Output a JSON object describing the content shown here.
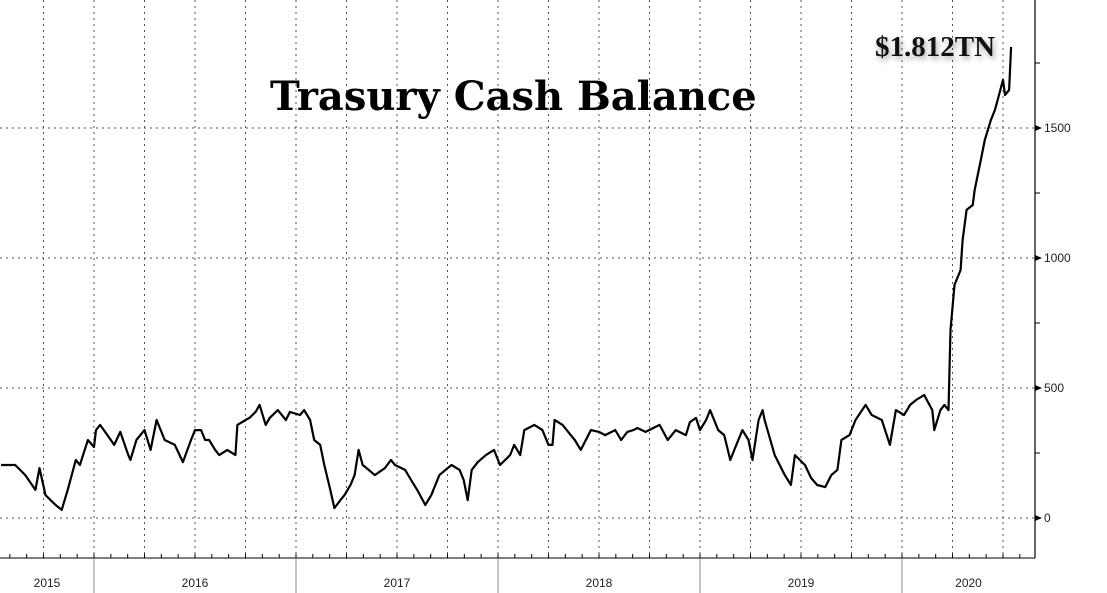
{
  "chart_data": {
    "type": "line",
    "title": "Trasury Cash Balance",
    "annotation": "$1.812TN",
    "xlabel": "",
    "ylabel": "",
    "x_tick_labels": [
      "2015",
      "2016",
      "2017",
      "2018",
      "2019",
      "2020"
    ],
    "y_ticks": [
      0,
      500,
      1000,
      1500
    ],
    "ylim": [
      -160,
      2000
    ],
    "xlim": [
      2015.535,
      2020.66
    ],
    "grid": true,
    "y_axis_side": "right",
    "line_color": "#000000",
    "series": [
      {
        "x": [
          2015.54,
          2015.61,
          2015.66,
          2015.71,
          2015.73,
          2015.76,
          2015.81,
          2015.84,
          2015.87,
          2015.91,
          2015.93,
          2015.97,
          2016.0,
          2016.01,
          2016.03,
          2016.07,
          2016.1,
          2016.13,
          2016.17,
          2016.18,
          2016.21,
          2016.25,
          2016.28,
          2016.31,
          2016.35,
          2016.4,
          2016.44,
          2016.48,
          2016.5,
          2016.53,
          2016.55,
          2016.57,
          2016.6,
          2016.62,
          2016.66,
          2016.7,
          2016.71,
          2016.75,
          2016.77,
          2016.8,
          2016.82,
          2016.85,
          2016.87,
          2016.91,
          2016.95,
          2016.97,
          2017.02,
          2017.04,
          2017.07,
          2017.09,
          2017.12,
          2017.14,
          2017.17,
          2017.19,
          2017.22,
          2017.24,
          2017.27,
          2017.29,
          2017.31,
          2017.33,
          2017.36,
          2017.39,
          2017.44,
          2017.47,
          2017.49,
          2017.54,
          2017.57,
          2017.6,
          2017.64,
          2017.67,
          2017.71,
          2017.74,
          2017.77,
          2017.81,
          2017.83,
          2017.85,
          2017.87,
          2017.9,
          2017.94,
          2017.98,
          2018.01,
          2018.06,
          2018.08,
          2018.11,
          2018.13,
          2018.18,
          2018.22,
          2018.25,
          2018.27,
          2018.28,
          2018.32,
          2018.36,
          2018.38,
          2018.41,
          2018.46,
          2018.5,
          2018.53,
          2018.58,
          2018.61,
          2018.64,
          2018.67,
          2018.69,
          2018.73,
          2018.8,
          2018.84,
          2018.88,
          2018.93,
          2018.95,
          2018.98,
          2019.0,
          2019.03,
          2019.05,
          2019.09,
          2019.12,
          2019.15,
          2019.17,
          2019.21,
          2019.24,
          2019.26,
          2019.29,
          2019.31,
          2019.32,
          2019.37,
          2019.42,
          2019.45,
          2019.47,
          2019.52,
          2019.55,
          2019.58,
          2019.62,
          2019.65,
          2019.68,
          2019.7,
          2019.74,
          2019.77,
          2019.82,
          2019.85,
          2019.9,
          2019.94,
          2019.97,
          2020.01,
          2020.04,
          2020.07,
          2020.11,
          2020.15,
          2020.16,
          2020.19,
          2020.21,
          2020.23,
          2020.24,
          2020.26,
          2020.29,
          2020.3,
          2020.32,
          2020.35,
          2020.36,
          2020.39,
          2020.41,
          2020.44,
          2020.46,
          2020.48,
          2020.5,
          2020.51,
          2020.53,
          2020.54
        ],
        "values": [
          204,
          204,
          165,
          108,
          192,
          88,
          50,
          31,
          108,
          223,
          204,
          300,
          273,
          338,
          358,
          315,
          281,
          331,
          242,
          223,
          300,
          338,
          262,
          377,
          300,
          281,
          215,
          300,
          338,
          338,
          300,
          300,
          262,
          242,
          262,
          242,
          358,
          377,
          385,
          408,
          435,
          358,
          385,
          415,
          377,
          408,
          396,
          415,
          377,
          300,
          281,
          204,
          108,
          38,
          69,
          88,
          127,
          165,
          262,
          204,
          185,
          165,
          192,
          223,
          204,
          185,
          146,
          108,
          50,
          88,
          165,
          185,
          204,
          185,
          146,
          69,
          185,
          215,
          242,
          262,
          204,
          242,
          281,
          242,
          338,
          358,
          338,
          281,
          281,
          377,
          358,
          319,
          300,
          262,
          338,
          331,
          319,
          338,
          300,
          331,
          338,
          346,
          331,
          358,
          300,
          338,
          319,
          369,
          385,
          338,
          377,
          415,
          338,
          319,
          223,
          262,
          338,
          300,
          223,
          377,
          415,
          377,
          242,
          165,
          127,
          242,
          204,
          154,
          127,
          119,
          165,
          185,
          300,
          319,
          377,
          435,
          396,
          377,
          281,
          415,
          396,
          435,
          454,
          473,
          415,
          338,
          415,
          435,
          415,
          723,
          896,
          954,
          1069,
          1185,
          1204,
          1262,
          1377,
          1454,
          1531,
          1569,
          1627,
          1685,
          1627,
          1646,
          1812
        ]
      }
    ]
  }
}
